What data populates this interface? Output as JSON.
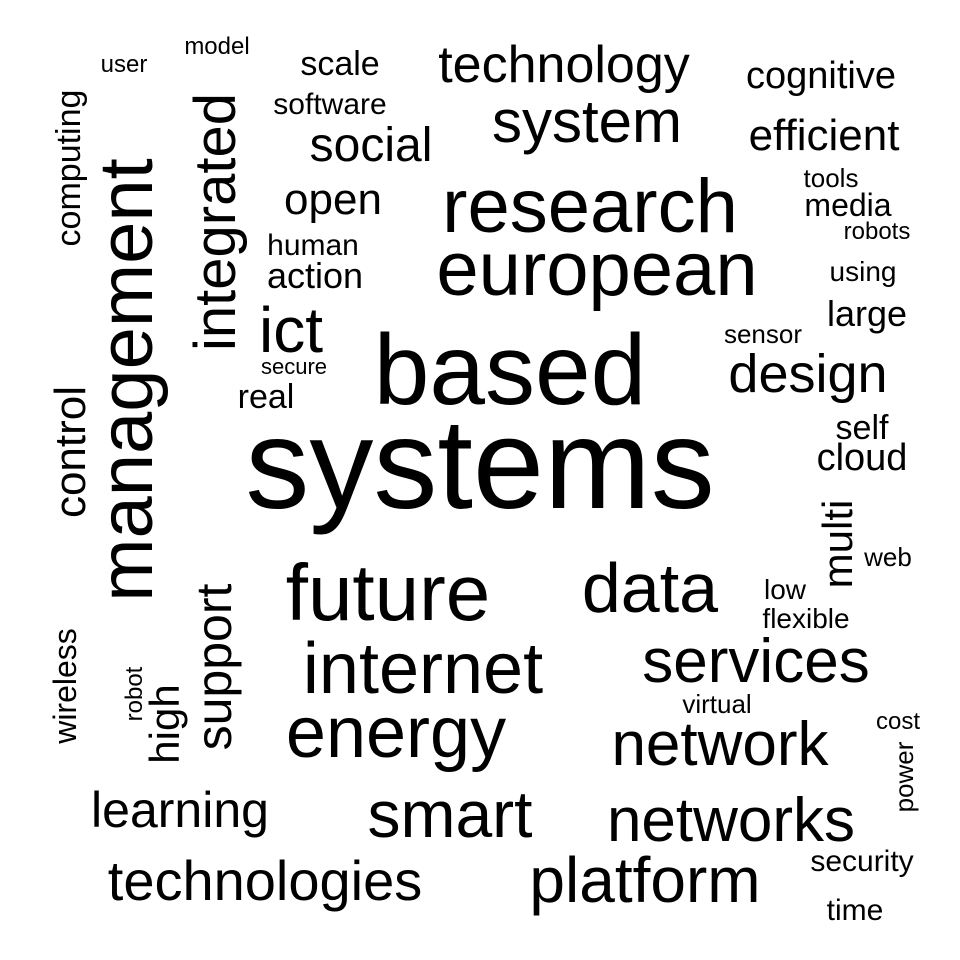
{
  "words": [
    {
      "key": "systems",
      "text": "systems",
      "size": 1.0
    },
    {
      "key": "based",
      "text": "based",
      "size": 0.68
    },
    {
      "key": "management",
      "text": "management",
      "size": 0.58
    },
    {
      "key": "research",
      "text": "research",
      "size": 0.56
    },
    {
      "key": "european",
      "text": "european",
      "size": 0.56
    },
    {
      "key": "future",
      "text": "future",
      "size": 0.56
    },
    {
      "key": "internet",
      "text": "internet",
      "size": 0.53
    },
    {
      "key": "energy",
      "text": "energy",
      "size": 0.53
    },
    {
      "key": "data",
      "text": "data",
      "size": 0.5
    },
    {
      "key": "services",
      "text": "services",
      "size": 0.48
    },
    {
      "key": "network",
      "text": "network",
      "size": 0.47
    },
    {
      "key": "smart",
      "text": "smart",
      "size": 0.47
    },
    {
      "key": "networks",
      "text": "networks",
      "size": 0.47
    },
    {
      "key": "platform",
      "text": "platform",
      "size": 0.47
    },
    {
      "key": "system",
      "text": "system",
      "size": 0.45
    },
    {
      "key": "integrated",
      "text": "integrated",
      "size": 0.44
    },
    {
      "key": "ict",
      "text": "ict",
      "size": 0.44
    },
    {
      "key": "technologies",
      "text": "technologies",
      "size": 0.44
    },
    {
      "key": "technology",
      "text": "technology",
      "size": 0.4
    },
    {
      "key": "design",
      "text": "design",
      "size": 0.4
    },
    {
      "key": "support",
      "text": "support",
      "size": 0.4
    },
    {
      "key": "learning",
      "text": "learning",
      "size": 0.38
    },
    {
      "key": "social",
      "text": "social",
      "size": 0.37
    },
    {
      "key": "efficient",
      "text": "efficient",
      "size": 0.35
    },
    {
      "key": "open",
      "text": "open",
      "size": 0.35
    },
    {
      "key": "control",
      "text": "control",
      "size": 0.35
    },
    {
      "key": "high",
      "text": "high",
      "size": 0.33
    },
    {
      "key": "multi",
      "text": "multi",
      "size": 0.33
    },
    {
      "key": "cognitive",
      "text": "cognitive",
      "size": 0.3
    },
    {
      "key": "cloud",
      "text": "cloud",
      "size": 0.3
    },
    {
      "key": "scale",
      "text": "scale",
      "size": 0.28
    },
    {
      "key": "action",
      "text": "action",
      "size": 0.28
    },
    {
      "key": "large",
      "text": "large",
      "size": 0.28
    },
    {
      "key": "computing",
      "text": "computing",
      "size": 0.28
    },
    {
      "key": "self",
      "text": "self",
      "size": 0.28
    },
    {
      "key": "real",
      "text": "real",
      "size": 0.28
    },
    {
      "key": "wireless",
      "text": "wireless",
      "size": 0.26
    },
    {
      "key": "media",
      "text": "media",
      "size": 0.26
    },
    {
      "key": "software",
      "text": "software",
      "size": 0.26
    },
    {
      "key": "human",
      "text": "human",
      "size": 0.24
    },
    {
      "key": "using",
      "text": "using",
      "size": 0.24
    },
    {
      "key": "flexible",
      "text": "flexible",
      "size": 0.24
    },
    {
      "key": "low",
      "text": "low",
      "size": 0.24
    },
    {
      "key": "security",
      "text": "security",
      "size": 0.24
    },
    {
      "key": "time",
      "text": "time",
      "size": 0.24
    },
    {
      "key": "sensor",
      "text": "sensor",
      "size": 0.22
    },
    {
      "key": "virtual",
      "text": "virtual",
      "size": 0.22
    },
    {
      "key": "web",
      "text": "web",
      "size": 0.22
    },
    {
      "key": "power",
      "text": "power",
      "size": 0.22
    },
    {
      "key": "tools",
      "text": "tools",
      "size": 0.22
    },
    {
      "key": "robots",
      "text": "robots",
      "size": 0.2
    },
    {
      "key": "user",
      "text": "user",
      "size": 0.2
    },
    {
      "key": "model",
      "text": "model",
      "size": 0.2
    },
    {
      "key": "secure",
      "text": "secure",
      "size": 0.2
    },
    {
      "key": "robot",
      "text": "robot",
      "size": 0.2
    },
    {
      "key": "cost",
      "text": "cost",
      "size": 0.2
    }
  ]
}
